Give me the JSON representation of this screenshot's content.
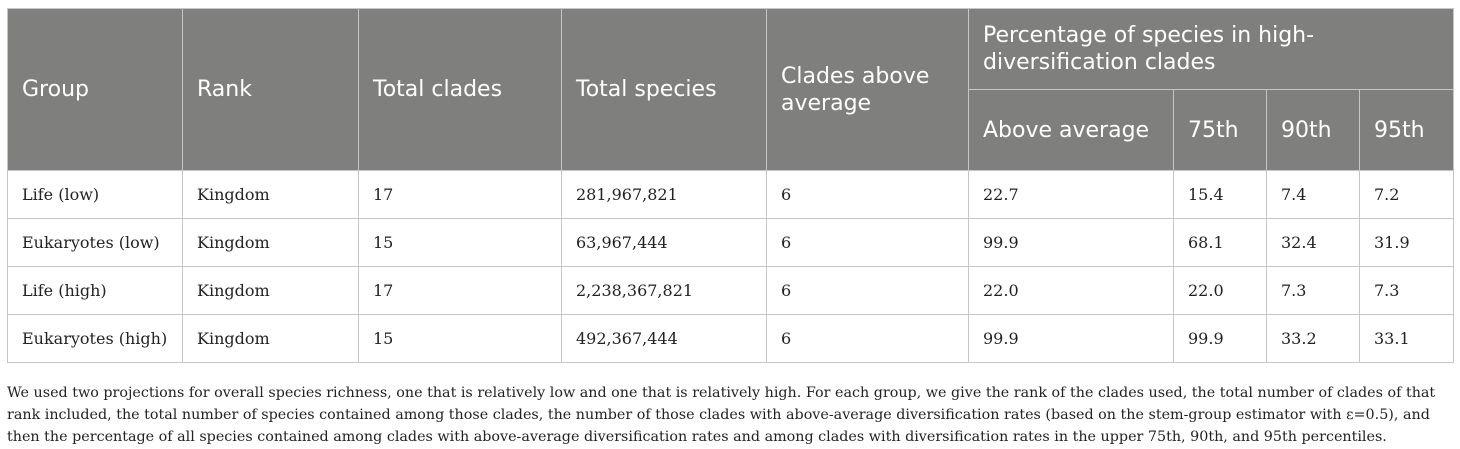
{
  "table": {
    "headers": {
      "group": "Group",
      "rank": "Rank",
      "total_clades": "Total clades",
      "total_species": "Total species",
      "clades_above_average": "Clades above average",
      "percentage_group": "Percentage of species in high-diversification clades",
      "above_average": "Above average",
      "p75": "75th",
      "p90": "90th",
      "p95": "95th"
    },
    "rows": [
      {
        "group": "Life (low)",
        "rank": "Kingdom",
        "total_clades": "17",
        "total_species": "281,967,821",
        "clades_above_average": "6",
        "above_average": "22.7",
        "p75": "15.4",
        "p90": "7.4",
        "p95": "7.2"
      },
      {
        "group": "Eukaryotes (low)",
        "rank": "Kingdom",
        "total_clades": "15",
        "total_species": "63,967,444",
        "clades_above_average": "6",
        "above_average": "99.9",
        "p75": "68.1",
        "p90": "32.4",
        "p95": "31.9"
      },
      {
        "group": "Life (high)",
        "rank": "Kingdom",
        "total_clades": "17",
        "total_species": "2,238,367,821",
        "clades_above_average": "6",
        "above_average": "22.0",
        "p75": "22.0",
        "p90": "7.3",
        "p95": "7.3"
      },
      {
        "group": "Eukaryotes (high)",
        "rank": "Kingdom",
        "total_clades": "15",
        "total_species": "492,367,444",
        "clades_above_average": "6",
        "above_average": "99.9",
        "p75": "99.9",
        "p90": "33.2",
        "p95": "33.1"
      }
    ]
  },
  "caption": "We used two projections for overall species richness, one that is relatively low and one that is relatively high. For each group, we give the rank of the clades used, the total number of clades of that rank included, the total number of species contained among those clades, the number of those clades with above-average diversification rates (based on the stem-group estimator with ε=0.5), and then the percentage of all species contained among clades with above-average diversification rates and among clades with diversification rates in the upper 75th, 90th, and 95th percentiles."
}
